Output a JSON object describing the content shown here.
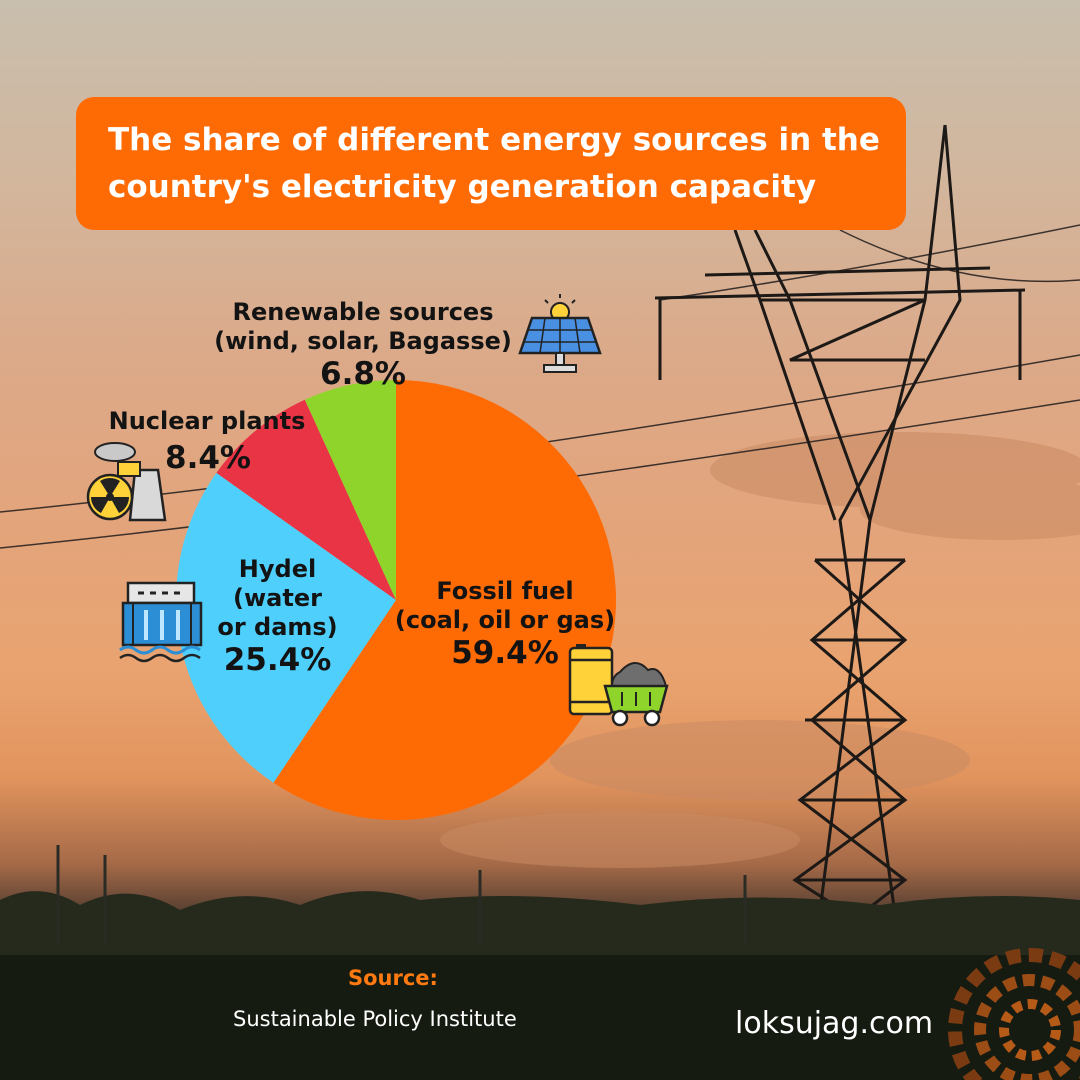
{
  "title": "The share of different energy sources in the country's electricity generation capacity",
  "source": {
    "heading": "Source:",
    "name": "Sustainable Policy Institute"
  },
  "brand": "loksujag.com",
  "colors": {
    "accent": "#fe6a04",
    "fossil": "#fe6a04",
    "hydel": "#4fd0fc",
    "nuclear": "#e93446",
    "renewable": "#8fd42b"
  },
  "chart_data": {
    "type": "pie",
    "title": "The share of different energy sources in the country's electricity generation capacity",
    "unit": "%",
    "slices": [
      {
        "key": "fossil",
        "name_lines": [
          "Fossil fuel",
          "(coal, oil or gas)"
        ],
        "value": 59.4,
        "label": "59.4%",
        "color": "#fe6a04",
        "icon": "oil-barrel-and-coal-cart-icon"
      },
      {
        "key": "hydel",
        "name_lines": [
          "Hydel",
          "(water",
          "or dams)"
        ],
        "value": 25.4,
        "label": "25.4%",
        "color": "#4fd0fc",
        "icon": "hydro-dam-icon"
      },
      {
        "key": "nuclear",
        "name_lines": [
          "Nuclear plants"
        ],
        "value": 8.4,
        "label": "8.4%",
        "color": "#e93446",
        "icon": "nuclear-plant-icon"
      },
      {
        "key": "renewable",
        "name_lines": [
          "Renewable sources",
          "(wind, solar, Bagasse)"
        ],
        "value": 6.8,
        "label": "6.8%",
        "color": "#8fd42b",
        "icon": "solar-panel-icon"
      }
    ]
  }
}
